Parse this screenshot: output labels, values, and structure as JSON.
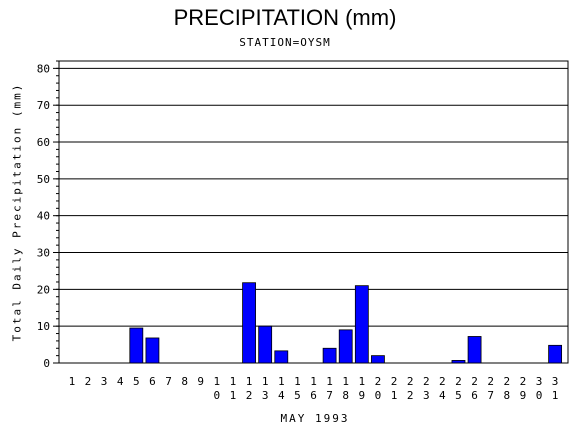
{
  "chart_data": {
    "type": "bar",
    "title": "PRECIPITATION (mm)",
    "subtitle": "STATION=OYSM",
    "xlabel": "MAY 1993",
    "ylabel": "Total Daily Precipitation (mm)",
    "ylim": [
      0,
      82
    ],
    "yticks": [
      0,
      10,
      20,
      30,
      40,
      50,
      60,
      70,
      80
    ],
    "grid": "horizontal",
    "bar_color": "#0000ff",
    "categories": [
      "1",
      "2",
      "3",
      "4",
      "5",
      "6",
      "7",
      "8",
      "9",
      "10",
      "11",
      "12",
      "13",
      "14",
      "15",
      "16",
      "17",
      "18",
      "19",
      "20",
      "21",
      "22",
      "23",
      "24",
      "25",
      "26",
      "27",
      "28",
      "29",
      "30",
      "31"
    ],
    "values": [
      0,
      0,
      0,
      0,
      9.5,
      6.8,
      0,
      0,
      0,
      0,
      0,
      21.8,
      10,
      3.3,
      0,
      0,
      4,
      9,
      21,
      2,
      0,
      0,
      0,
      0,
      0.7,
      7.2,
      0,
      0,
      0,
      0,
      4.8
    ]
  }
}
